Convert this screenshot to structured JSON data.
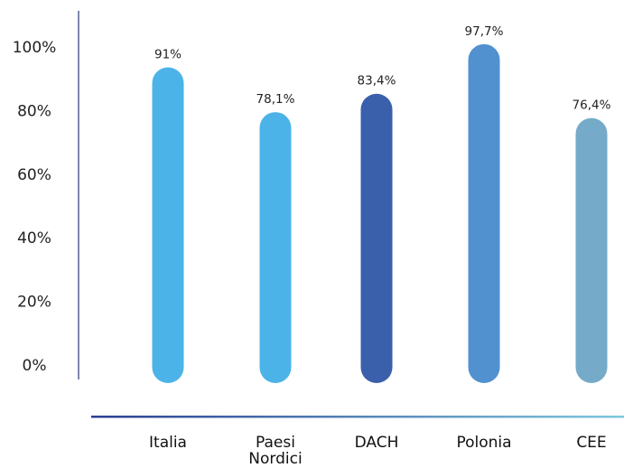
{
  "chart_data": {
    "type": "bar",
    "categories": [
      [
        "Italia"
      ],
      [
        "Paesi",
        "Nordici"
      ],
      [
        "DACH"
      ],
      [
        "Polonia"
      ],
      [
        "CEE"
      ]
    ],
    "values": [
      91,
      78.1,
      83.4,
      97.7,
      76.4
    ],
    "data_labels": [
      "91%",
      "78,1%",
      "83,4%",
      "97,7%",
      "76,4%"
    ],
    "bar_colors": [
      "#4cb3e8",
      "#4cb3e8",
      "#3a5fab",
      "#5191d0",
      "#76aac9"
    ],
    "y_ticks": [
      "0%",
      "20%",
      "40%",
      "60%",
      "80%",
      "100%"
    ],
    "y_tick_values": [
      0,
      20,
      40,
      60,
      80,
      100
    ],
    "ylim": [
      0,
      100
    ],
    "baseline_colors": [
      "#2b3e91",
      "#7ec8dd"
    ],
    "title": "",
    "xlabel": "",
    "ylabel": "",
    "grid": false
  }
}
